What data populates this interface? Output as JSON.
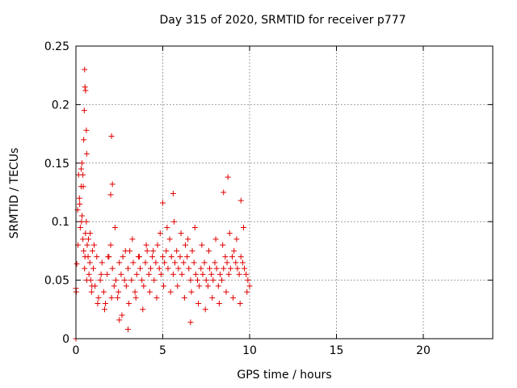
{
  "chart_data": {
    "type": "scatter",
    "title": "Day 315 of 2020, SRMTID for receiver p777",
    "xlabel": "GPS time / hours",
    "ylabel": "SRMTID / TECUs",
    "xlim": [
      0,
      24
    ],
    "ylim": [
      0,
      0.25
    ],
    "xticks": [
      0,
      5,
      10,
      15,
      20
    ],
    "yticks": [
      0,
      0.05,
      0.1,
      0.15,
      0.2,
      0.25
    ],
    "grid": true,
    "marker": "+",
    "series": [
      {
        "color": "#e00000",
        "note_range": "x from 0 to about 10 hours",
        "x": [
          0.0,
          0.05,
          0.1,
          0.15,
          0.2,
          0.25,
          0.3,
          0.35,
          0.4,
          0.45,
          0.5,
          0.55,
          0.6,
          0.65,
          0.7,
          0.75,
          0.8,
          0.85,
          0.9,
          0.95,
          1.0,
          1.1,
          1.2,
          1.3,
          1.4,
          1.5,
          1.6,
          1.7,
          1.8,
          1.9,
          2.0,
          2.1,
          2.2,
          2.3,
          2.4,
          2.5,
          2.6,
          2.7,
          2.8,
          2.9,
          3.0,
          3.1,
          3.2,
          3.3,
          3.4,
          3.5,
          3.6,
          3.7,
          3.8,
          3.9,
          4.0,
          4.1,
          4.2,
          4.3,
          4.4,
          4.5,
          4.6,
          4.7,
          4.8,
          4.9,
          5.0,
          5.1,
          5.2,
          5.3,
          5.4,
          5.5,
          5.6,
          5.7,
          5.8,
          5.9,
          6.0,
          6.1,
          6.2,
          6.3,
          6.4,
          6.5,
          6.6,
          6.7,
          6.8,
          6.9,
          7.0,
          7.1,
          7.2,
          7.3,
          7.4,
          7.5,
          7.6,
          7.7,
          7.8,
          7.9,
          8.0,
          8.1,
          8.2,
          8.3,
          8.4,
          8.5,
          8.6,
          8.7,
          8.8,
          8.9,
          9.0,
          9.1,
          9.2,
          9.3,
          9.4,
          9.5,
          9.6,
          9.7,
          9.8,
          9.9,
          10.0,
          0.02,
          0.12,
          0.22,
          0.32,
          0.42,
          0.52,
          0.62,
          0.72,
          0.82,
          0.92,
          1.05,
          1.25,
          1.45,
          1.65,
          1.85,
          2.05,
          2.25,
          2.45,
          2.65,
          2.85,
          3.05,
          3.25,
          3.45,
          3.65,
          3.85,
          4.05,
          4.25,
          4.45,
          4.65,
          4.85,
          5.05,
          5.25,
          5.45,
          5.65,
          5.85,
          6.05,
          6.25,
          6.45,
          6.65,
          6.85,
          7.05,
          7.25,
          7.45,
          7.65,
          7.85,
          8.05,
          8.25,
          8.45,
          8.65,
          8.85,
          9.05,
          9.25,
          9.45,
          9.65,
          9.85,
          0.5,
          0.52,
          0.55,
          0.48,
          0.6,
          0.45,
          0.62,
          0.35,
          0.3,
          0.4,
          2.05,
          2.1,
          2.0,
          0.0,
          5.0,
          5.6,
          8.75,
          9.5,
          8.5,
          3.0,
          6.6,
          2.5
        ],
        "y": [
          0.0,
          0.064,
          0.11,
          0.14,
          0.12,
          0.095,
          0.13,
          0.105,
          0.085,
          0.075,
          0.06,
          0.09,
          0.1,
          0.08,
          0.07,
          0.055,
          0.065,
          0.05,
          0.04,
          0.075,
          0.06,
          0.045,
          0.07,
          0.035,
          0.05,
          0.065,
          0.04,
          0.03,
          0.055,
          0.07,
          0.08,
          0.06,
          0.045,
          0.05,
          0.035,
          0.065,
          0.055,
          0.07,
          0.05,
          0.045,
          0.06,
          0.075,
          0.05,
          0.065,
          0.04,
          0.055,
          0.07,
          0.06,
          0.05,
          0.045,
          0.065,
          0.075,
          0.055,
          0.06,
          0.07,
          0.05,
          0.065,
          0.08,
          0.06,
          0.055,
          0.07,
          0.065,
          0.075,
          0.06,
          0.085,
          0.07,
          0.055,
          0.065,
          0.075,
          0.06,
          0.07,
          0.055,
          0.065,
          0.08,
          0.07,
          0.06,
          0.05,
          0.075,
          0.065,
          0.055,
          0.05,
          0.045,
          0.06,
          0.055,
          0.065,
          0.05,
          0.045,
          0.06,
          0.055,
          0.05,
          0.065,
          0.06,
          0.045,
          0.055,
          0.05,
          0.06,
          0.07,
          0.065,
          0.055,
          0.06,
          0.07,
          0.075,
          0.065,
          0.06,
          0.055,
          0.07,
          0.065,
          0.06,
          0.055,
          0.05,
          0.045,
          0.04,
          0.08,
          0.115,
          0.1,
          0.13,
          0.07,
          0.05,
          0.085,
          0.09,
          0.045,
          0.08,
          0.03,
          0.055,
          0.025,
          0.07,
          0.035,
          0.095,
          0.04,
          0.02,
          0.075,
          0.03,
          0.085,
          0.035,
          0.07,
          0.025,
          0.08,
          0.04,
          0.075,
          0.035,
          0.09,
          0.045,
          0.095,
          0.04,
          0.1,
          0.045,
          0.09,
          0.035,
          0.085,
          0.04,
          0.095,
          0.03,
          0.08,
          0.025,
          0.075,
          0.035,
          0.085,
          0.03,
          0.08,
          0.04,
          0.09,
          0.035,
          0.085,
          0.03,
          0.095,
          0.04,
          0.23,
          0.215,
          0.212,
          0.195,
          0.178,
          0.17,
          0.158,
          0.15,
          0.145,
          0.14,
          0.173,
          0.132,
          0.123,
          0.043,
          0.116,
          0.124,
          0.138,
          0.118,
          0.125,
          0.008,
          0.014,
          0.016
        ]
      }
    ]
  }
}
